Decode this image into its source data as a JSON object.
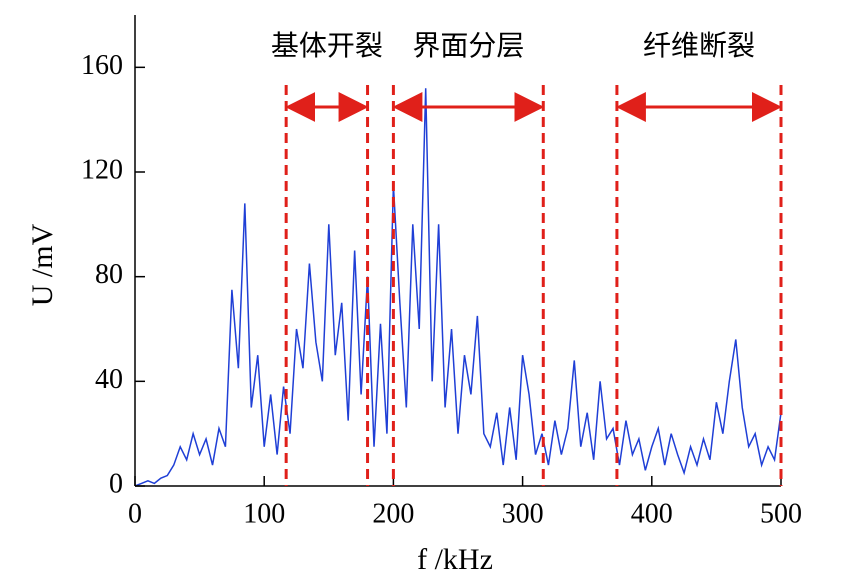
{
  "chart_data": {
    "type": "line",
    "xlabel": "f /kHz",
    "ylabel": "U /mV",
    "xlim": [
      0,
      500
    ],
    "ylim": [
      0,
      180
    ],
    "xticks": [
      0,
      100,
      200,
      300,
      400,
      500
    ],
    "yticks": [
      0,
      40,
      80,
      120,
      160
    ],
    "series": [
      {
        "color": "#1f3fd6",
        "x": [
          0,
          5,
          10,
          15,
          20,
          25,
          30,
          35,
          40,
          45,
          50,
          55,
          60,
          65,
          70,
          75,
          80,
          85,
          90,
          95,
          100,
          105,
          110,
          115,
          120,
          125,
          130,
          135,
          140,
          145,
          150,
          155,
          160,
          165,
          170,
          175,
          180,
          185,
          190,
          195,
          200,
          205,
          210,
          215,
          220,
          225,
          230,
          235,
          240,
          245,
          250,
          255,
          260,
          265,
          270,
          275,
          280,
          285,
          290,
          295,
          300,
          305,
          310,
          315,
          320,
          325,
          330,
          335,
          340,
          345,
          350,
          355,
          360,
          365,
          370,
          375,
          380,
          385,
          390,
          395,
          400,
          405,
          410,
          415,
          420,
          425,
          430,
          435,
          440,
          445,
          450,
          455,
          460,
          465,
          470,
          475,
          480,
          485,
          490,
          495,
          500
        ],
        "values": [
          0,
          1,
          2,
          1,
          3,
          4,
          8,
          15,
          10,
          20,
          12,
          18,
          8,
          22,
          15,
          75,
          45,
          108,
          30,
          50,
          15,
          35,
          12,
          38,
          20,
          60,
          45,
          85,
          55,
          40,
          100,
          50,
          70,
          25,
          90,
          35,
          80,
          15,
          62,
          20,
          115,
          70,
          30,
          100,
          60,
          152,
          40,
          100,
          30,
          60,
          20,
          50,
          35,
          65,
          20,
          15,
          28,
          8,
          30,
          10,
          50,
          35,
          12,
          20,
          8,
          25,
          12,
          22,
          48,
          15,
          28,
          10,
          40,
          18,
          22,
          8,
          25,
          12,
          18,
          6,
          15,
          22,
          8,
          20,
          12,
          5,
          15,
          8,
          18,
          10,
          32,
          20,
          40,
          56,
          30,
          15,
          20,
          8,
          15,
          10,
          28
        ]
      }
    ],
    "regions": [
      {
        "label": "基体开裂",
        "start": 117,
        "end": 180
      },
      {
        "label": "界面分层",
        "start": 200,
        "end": 316
      },
      {
        "label": "纤维断裂",
        "start": 373,
        "end": 500
      }
    ],
    "region_color": "#e0201a"
  }
}
